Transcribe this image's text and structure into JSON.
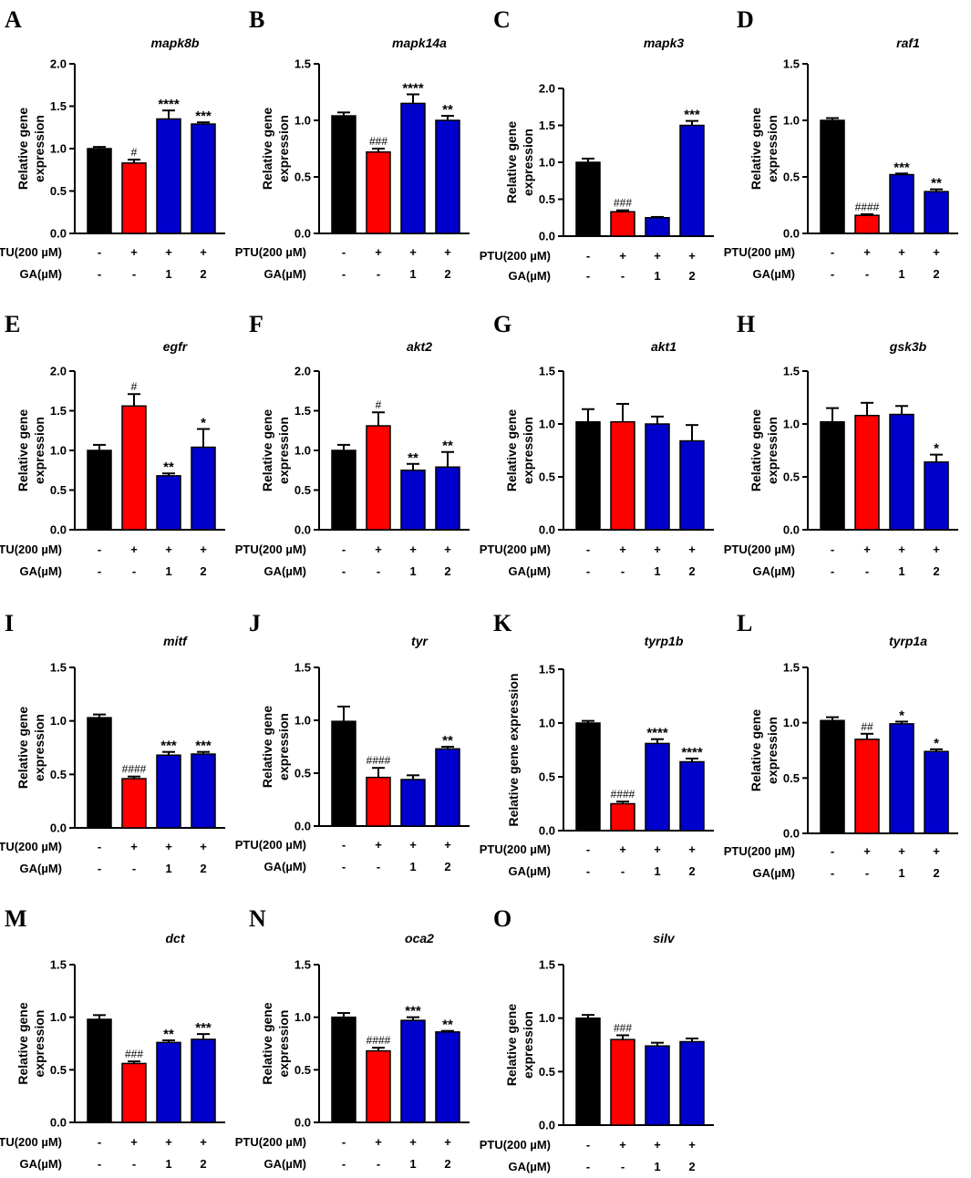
{
  "figure": {
    "condition_labels": [
      "PTU(200 µM)",
      "GA(µM)"
    ],
    "condition_values": [
      [
        "-",
        "+",
        "+",
        "+"
      ],
      [
        "-",
        "-",
        "1",
        "2"
      ]
    ],
    "bar_colors": [
      "#000000",
      "#ff0000",
      "#0000cc",
      "#0000cc"
    ]
  },
  "chart_data": [
    {
      "panel": "A",
      "title": "mapk8b",
      "type": "bar",
      "ylabel": "Relative gene expression",
      "ylabel_lines": [
        "Relative gene",
        "expression"
      ],
      "ylim": [
        0,
        2.0
      ],
      "yticks": [
        "0.0",
        "0.5",
        "1.0",
        "1.5",
        "2.0"
      ],
      "values": [
        1.0,
        0.83,
        1.35,
        1.29
      ],
      "errors": [
        0.02,
        0.04,
        0.1,
        0.02
      ],
      "annotations": [
        "",
        "#",
        "****",
        "***"
      ]
    },
    {
      "panel": "B",
      "title": "mapk14a",
      "type": "bar",
      "ylabel": "Relative gene expression",
      "ylabel_lines": [
        "Relative gene",
        "expression"
      ],
      "ylim": [
        0,
        1.5
      ],
      "yticks": [
        "0.0",
        "0.5",
        "1.0",
        "1.5"
      ],
      "values": [
        1.04,
        0.72,
        1.15,
        1.0
      ],
      "errors": [
        0.03,
        0.03,
        0.08,
        0.04
      ],
      "annotations": [
        "",
        "###",
        "****",
        "**"
      ]
    },
    {
      "panel": "C",
      "title": "mapk3",
      "type": "bar",
      "ylabel": "Relative gene expression",
      "ylabel_lines": [
        "Relative gene",
        "expression"
      ],
      "ylim": [
        0,
        2.0
      ],
      "yticks": [
        "0.0",
        "0.5",
        "1.0",
        "1.5",
        "2.0"
      ],
      "values": [
        1.0,
        0.33,
        0.25,
        1.5
      ],
      "errors": [
        0.05,
        0.02,
        0.01,
        0.06
      ],
      "annotations": [
        "",
        "###",
        "",
        "***"
      ]
    },
    {
      "panel": "D",
      "title": "raf1",
      "type": "bar",
      "ylabel": "Relative gene expression",
      "ylabel_lines": [
        "Relative gene",
        "expression"
      ],
      "ylim": [
        0,
        1.5
      ],
      "yticks": [
        "0.0",
        "0.5",
        "1.0",
        "1.5"
      ],
      "values": [
        1.0,
        0.16,
        0.52,
        0.37
      ],
      "errors": [
        0.02,
        0.01,
        0.01,
        0.02
      ],
      "annotations": [
        "",
        "####",
        "***",
        "**"
      ]
    },
    {
      "panel": "E",
      "title": "egfr",
      "type": "bar",
      "ylabel": "Relative gene expression",
      "ylabel_lines": [
        "Relative gene",
        "expression"
      ],
      "ylim": [
        0,
        2.0
      ],
      "yticks": [
        "0.0",
        "0.5",
        "1.0",
        "1.5",
        "2.0"
      ],
      "values": [
        1.0,
        1.56,
        0.68,
        1.04
      ],
      "errors": [
        0.07,
        0.15,
        0.03,
        0.23
      ],
      "annotations": [
        "",
        "#",
        "**",
        "*"
      ]
    },
    {
      "panel": "F",
      "title": "akt2",
      "type": "bar",
      "ylabel": "Relative gene expression",
      "ylabel_lines": [
        "Relative gene",
        "expression"
      ],
      "ylim": [
        0,
        2.0
      ],
      "yticks": [
        "0.0",
        "0.5",
        "1.0",
        "1.5",
        "2.0"
      ],
      "values": [
        1.0,
        1.31,
        0.75,
        0.79
      ],
      "errors": [
        0.07,
        0.17,
        0.08,
        0.19
      ],
      "annotations": [
        "",
        "#",
        "**",
        "**"
      ]
    },
    {
      "panel": "G",
      "title": "akt1",
      "type": "bar",
      "ylabel": "Relative gene expression",
      "ylabel_lines": [
        "Relative gene",
        "expression"
      ],
      "ylim": [
        0,
        1.5
      ],
      "yticks": [
        "0.0",
        "0.5",
        "1.0",
        "1.5"
      ],
      "values": [
        1.02,
        1.02,
        1.0,
        0.84
      ],
      "errors": [
        0.12,
        0.17,
        0.07,
        0.15
      ],
      "annotations": [
        "",
        "",
        "",
        ""
      ]
    },
    {
      "panel": "H",
      "title": "gsk3b",
      "type": "bar",
      "ylabel": "Relative gene expression",
      "ylabel_lines": [
        "Relative gene",
        "expression"
      ],
      "ylim": [
        0,
        1.5
      ],
      "yticks": [
        "0.0",
        "0.5",
        "1.0",
        "1.5"
      ],
      "values": [
        1.02,
        1.08,
        1.09,
        0.64
      ],
      "errors": [
        0.13,
        0.12,
        0.08,
        0.07
      ],
      "annotations": [
        "",
        "",
        "",
        "*"
      ]
    },
    {
      "panel": "I",
      "title": "mitf",
      "type": "bar",
      "ylabel": "Relative gene expression",
      "ylabel_lines": [
        "Relative gene",
        "expression"
      ],
      "ylim": [
        0,
        1.5
      ],
      "yticks": [
        "0.0",
        "0.5",
        "1.0",
        "1.5"
      ],
      "values": [
        1.03,
        0.46,
        0.68,
        0.69
      ],
      "errors": [
        0.03,
        0.02,
        0.03,
        0.02
      ],
      "annotations": [
        "",
        "####",
        "***",
        "***"
      ]
    },
    {
      "panel": "J",
      "title": "tyr",
      "type": "bar",
      "ylabel": "Relative gene expression",
      "ylabel_lines": [
        "Relative gene",
        "expression"
      ],
      "ylim": [
        0,
        1.5
      ],
      "yticks": [
        "0.0",
        "0.5",
        "1.0",
        "1.5"
      ],
      "values": [
        0.99,
        0.46,
        0.44,
        0.73
      ],
      "errors": [
        0.14,
        0.09,
        0.04,
        0.02
      ],
      "annotations": [
        "",
        "####",
        "",
        "**"
      ]
    },
    {
      "panel": "K",
      "title": "tyrp1b",
      "type": "bar",
      "ylabel": "Relative gene expression",
      "ylabel_lines": [
        "Relative gene expression"
      ],
      "ylim": [
        0,
        1.5
      ],
      "yticks": [
        "0.0",
        "0.5",
        "1.0",
        "1.5"
      ],
      "values": [
        1.0,
        0.25,
        0.81,
        0.64
      ],
      "errors": [
        0.02,
        0.02,
        0.04,
        0.03
      ],
      "annotations": [
        "",
        "####",
        "****",
        "****"
      ]
    },
    {
      "panel": "L",
      "title": "tyrp1a",
      "type": "bar",
      "ylabel": "Relative gene expression",
      "ylabel_lines": [
        "Relative gene",
        "expression"
      ],
      "ylim": [
        0,
        1.5
      ],
      "yticks": [
        "0.0",
        "0.5",
        "1.0",
        "1.5"
      ],
      "values": [
        1.02,
        0.85,
        0.99,
        0.74
      ],
      "errors": [
        0.03,
        0.05,
        0.02,
        0.02
      ],
      "annotations": [
        "",
        "##",
        "*",
        "*"
      ]
    },
    {
      "panel": "M",
      "title": "dct",
      "type": "bar",
      "ylabel": "Relative gene expression",
      "ylabel_lines": [
        "Relative gene",
        "expression"
      ],
      "ylim": [
        0,
        1.5
      ],
      "yticks": [
        "0.0",
        "0.5",
        "1.0",
        "1.5"
      ],
      "values": [
        0.98,
        0.56,
        0.76,
        0.79
      ],
      "errors": [
        0.04,
        0.02,
        0.02,
        0.05
      ],
      "annotations": [
        "",
        "###",
        "**",
        "***"
      ]
    },
    {
      "panel": "N",
      "title": "oca2",
      "type": "bar",
      "ylabel": "Relative gene expression",
      "ylabel_lines": [
        "Relative gene",
        "expression"
      ],
      "ylim": [
        0,
        1.5
      ],
      "yticks": [
        "0.0",
        "0.5",
        "1.0",
        "1.5"
      ],
      "values": [
        1.0,
        0.68,
        0.97,
        0.86
      ],
      "errors": [
        0.04,
        0.03,
        0.03,
        0.01
      ],
      "annotations": [
        "",
        "####",
        "***",
        "**"
      ]
    },
    {
      "panel": "O",
      "title": "silv",
      "type": "bar",
      "ylabel": "Relative gene expression",
      "ylabel_lines": [
        "Relative gene",
        "expression"
      ],
      "ylim": [
        0,
        1.5
      ],
      "yticks": [
        "0.0",
        "0.5",
        "1.0",
        "1.5"
      ],
      "values": [
        1.0,
        0.8,
        0.74,
        0.78
      ],
      "errors": [
        0.03,
        0.04,
        0.03,
        0.03
      ],
      "annotations": [
        "",
        "###",
        "",
        ""
      ]
    }
  ]
}
